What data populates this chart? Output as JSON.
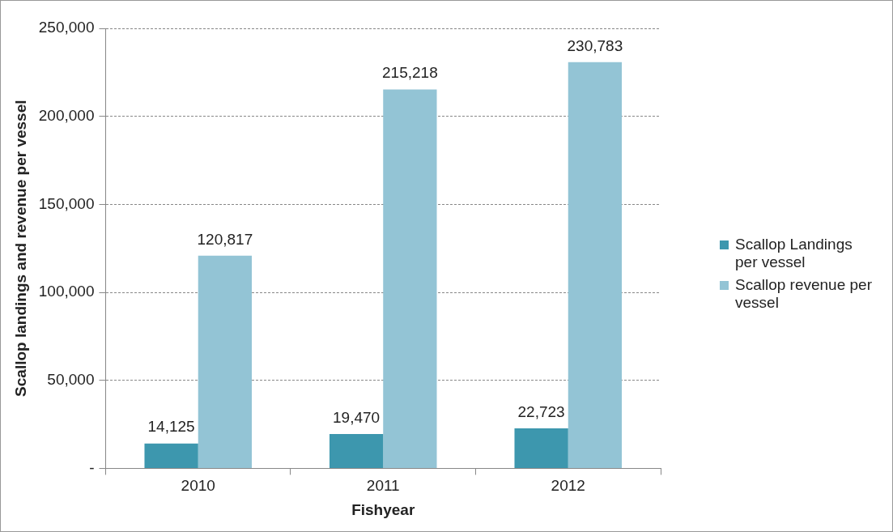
{
  "chart_data": {
    "type": "bar",
    "xlabel": "Fishyear",
    "ylabel": "Scallop landings and revenue per vessel",
    "categories": [
      "2010",
      "2011",
      "2012"
    ],
    "series": [
      {
        "name": "Scallop Landings per vessel",
        "color": "#3d97ae",
        "values": [
          14125,
          19470,
          22723
        ],
        "value_labels": [
          "14,125",
          "19,470",
          "22,723"
        ]
      },
      {
        "name": "Scallop revenue per vessel",
        "color": "#93c4d5",
        "values": [
          120817,
          215218,
          230783
        ],
        "value_labels": [
          "120,817",
          "215,218",
          "230,783"
        ]
      }
    ],
    "ylim": [
      0,
      250000
    ],
    "yticks": [
      {
        "value": 0,
        "label": "-"
      },
      {
        "value": 50000,
        "label": "50,000"
      },
      {
        "value": 100000,
        "label": "100,000"
      },
      {
        "value": 150000,
        "label": "150,000"
      },
      {
        "value": 200000,
        "label": "200,000"
      },
      {
        "value": 250000,
        "label": "250,000"
      }
    ],
    "grid": "y",
    "legend": "right"
  }
}
